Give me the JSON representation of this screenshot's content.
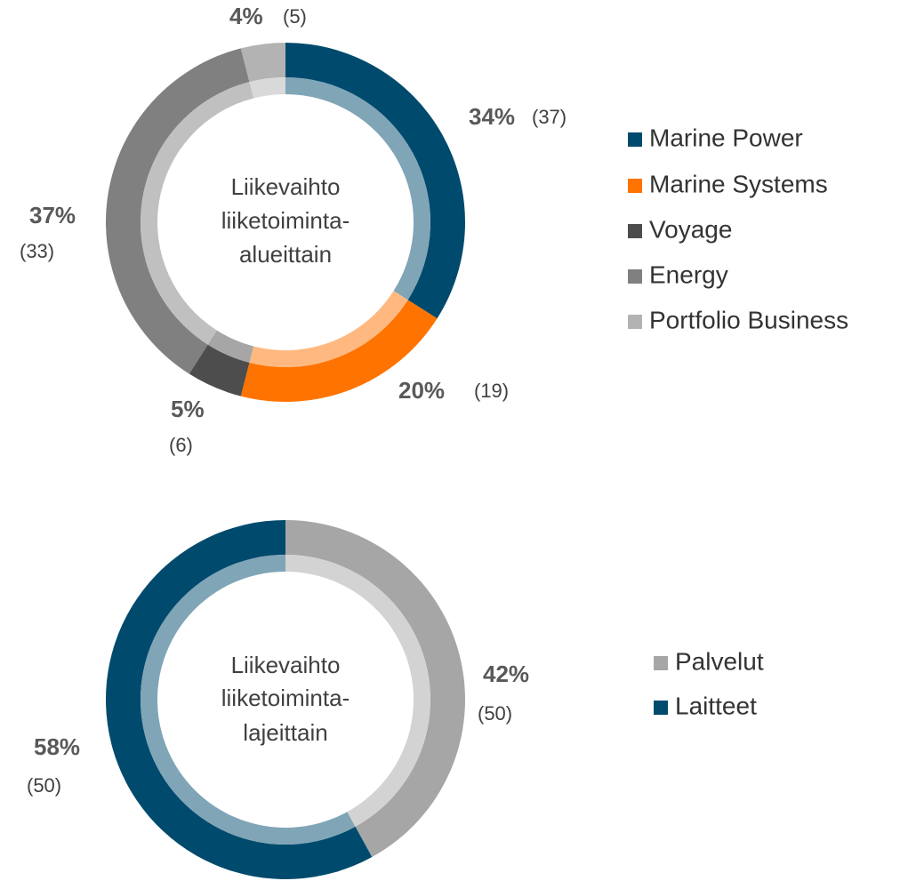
{
  "chart_data": [
    {
      "type": "donut",
      "center_text": [
        "Liikevaihto",
        "liiketoiminta-",
        "alueittain"
      ],
      "categories": [
        "Marine Power",
        "Marine Systems",
        "Voyage",
        "Energy",
        "Portfolio Business"
      ],
      "values": [
        34,
        20,
        5,
        37,
        4
      ],
      "value_labels": [
        "34%",
        "20%",
        "5%",
        "37%",
        "4%"
      ],
      "prior_labels": [
        "(37)",
        "(19)",
        "(6)",
        "(33)",
        "(5)"
      ],
      "colors": [
        "#004a6e",
        "#ff7300",
        "#4d4d4d",
        "#808080",
        "#b3b3b3"
      ],
      "legend": "right"
    },
    {
      "type": "donut",
      "center_text": [
        "Liikevaihto",
        "liiketoiminta-",
        "lajeittain"
      ],
      "categories": [
        "Palvelut",
        "Laitteet"
      ],
      "values": [
        42,
        58
      ],
      "value_labels": [
        "42%",
        "58%"
      ],
      "prior_labels": [
        "(50)",
        "(50)"
      ],
      "colors": [
        "#a6a6a6",
        "#004a6e"
      ],
      "legend": "right"
    }
  ]
}
